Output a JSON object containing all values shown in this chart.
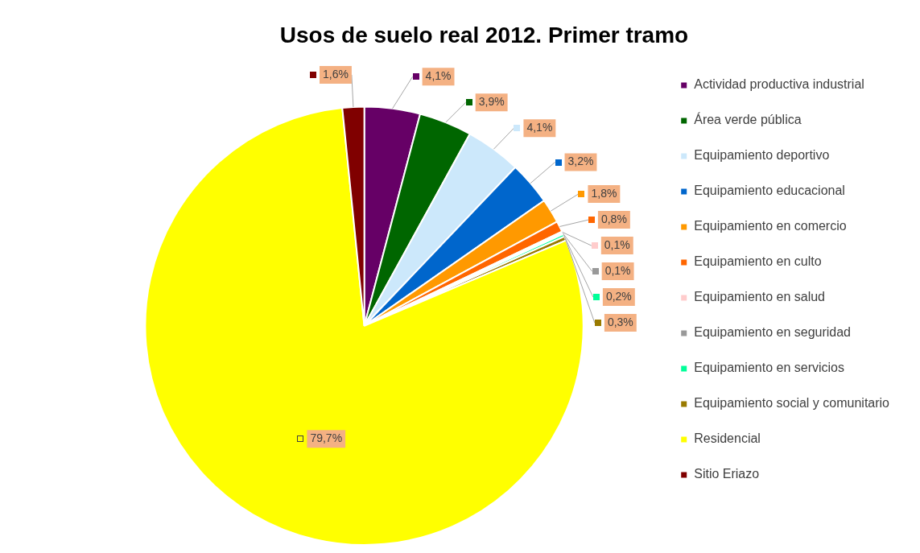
{
  "chart_data": {
    "type": "pie",
    "title": "Usos de suelo real 2012. Primer tramo",
    "categories": [
      "Actividad productiva industrial",
      "Área verde pública",
      "Equipamiento deportivo",
      "Equipamiento educacional",
      "Equipamiento en comercio",
      "Equipamiento en culto",
      "Equipamiento en salud",
      "Equipamiento en seguridad",
      "Equipamiento en servicios",
      "Equipamiento social y comunitario",
      "Residencial",
      "Sitio Eriazo"
    ],
    "values": [
      4.1,
      3.9,
      4.1,
      3.2,
      1.8,
      0.8,
      0.1,
      0.1,
      0.2,
      0.3,
      79.7,
      1.6
    ],
    "value_labels": [
      "4,1%",
      "3,9%",
      "4,1%",
      "3,2%",
      "1,8%",
      "0,8%",
      "0,1%",
      "0,1%",
      "0,2%",
      "0,3%",
      "79,7%",
      "1,6%"
    ],
    "colors": [
      "#660066",
      "#006600",
      "#cce8fb",
      "#0066cc",
      "#ff9900",
      "#ff6600",
      "#ffcccc",
      "#999999",
      "#00ff99",
      "#997a00",
      "#ffff00",
      "#800000"
    ],
    "legend": "right"
  }
}
